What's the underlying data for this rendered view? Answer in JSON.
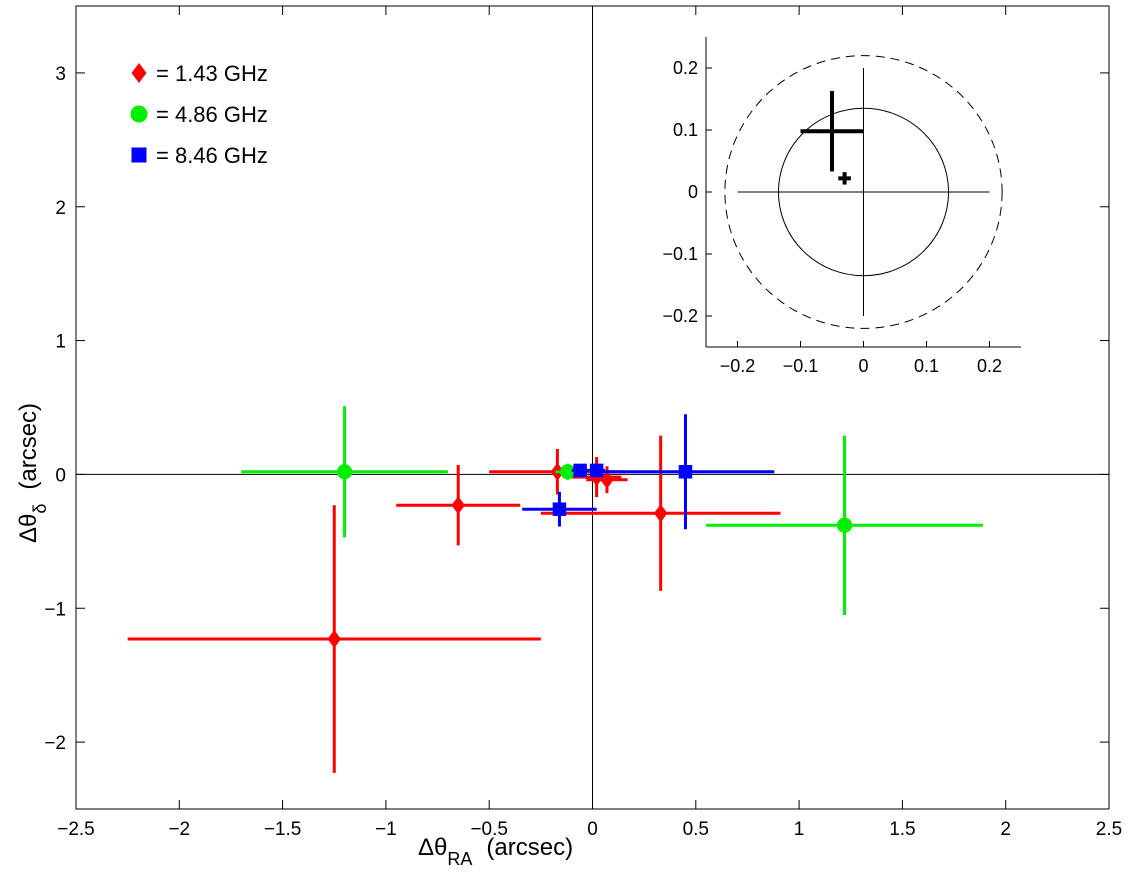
{
  "chart_data": [
    {
      "type": "scatter",
      "title": "",
      "xlabel": "Δθ_RA (arcsec)",
      "xlabel_main": "Δθ",
      "xlabel_sub": "RA",
      "xlabel_unit": "(arcsec)",
      "ylabel": "Δθ_δ (arcsec)",
      "ylabel_main": "Δθ",
      "ylabel_sub": "δ",
      "ylabel_unit": "(arcsec)",
      "xlim": [
        -2.5,
        2.5
      ],
      "ylim": [
        -2.5,
        3.5
      ],
      "xticks": [
        -2.5,
        -2,
        -1.5,
        -1,
        -0.5,
        0,
        0.5,
        1,
        1.5,
        2,
        2.5
      ],
      "yticks": [
        -2,
        -1,
        0,
        1,
        2,
        3
      ],
      "xtick_labels": [
        "−2.5",
        "−2",
        "−1.5",
        "−1",
        "−0.5",
        "0",
        "0.5",
        "1",
        "1.5",
        "2",
        "2.5"
      ],
      "ytick_labels": [
        "−2",
        "−1",
        "0",
        "1",
        "2",
        "3"
      ],
      "reference_lines": {
        "x": 0,
        "y": 0
      },
      "grid": false,
      "legend_position": "top-left",
      "series": [
        {
          "name": "= 1.43 GHz",
          "color": "#ff0000",
          "marker": "diamond",
          "points": [
            {
              "x": -1.25,
              "y": -1.23,
              "xerr": [
                1.0,
                1.0
              ],
              "yerr": [
                1.0,
                1.0
              ]
            },
            {
              "x": -0.65,
              "y": -0.23,
              "xerr": [
                0.3,
                0.3
              ],
              "yerr": [
                0.3,
                0.3
              ]
            },
            {
              "x": -0.17,
              "y": 0.02,
              "xerr": [
                0.33,
                0.33
              ],
              "yerr": [
                0.17,
                0.17
              ]
            },
            {
              "x": 0.02,
              "y": -0.02,
              "xerr": [
                0.12,
                0.12
              ],
              "yerr": [
                0.15,
                0.15
              ]
            },
            {
              "x": 0.07,
              "y": -0.04,
              "xerr": [
                0.1,
                0.1
              ],
              "yerr": [
                0.1,
                0.1
              ]
            },
            {
              "x": 0.33,
              "y": -0.29,
              "xerr": [
                0.58,
                0.58
              ],
              "yerr": [
                0.58,
                0.58
              ]
            }
          ]
        },
        {
          "name": "= 4.86 GHz",
          "color": "#00ee00",
          "marker": "circle",
          "points": [
            {
              "x": -1.2,
              "y": 0.02,
              "xerr": [
                0.5,
                0.5
              ],
              "yerr": [
                0.49,
                0.49
              ]
            },
            {
              "x": -0.12,
              "y": 0.02,
              "xerr": [
                0.06,
                0.06
              ],
              "yerr": [
                0.06,
                0.06
              ]
            },
            {
              "x": 1.22,
              "y": -0.38,
              "xerr": [
                0.67,
                0.67
              ],
              "yerr": [
                0.67,
                0.67
              ]
            }
          ]
        },
        {
          "name": "= 8.46 GHz",
          "color": "#0000ff",
          "marker": "square",
          "points": [
            {
              "x": -0.16,
              "y": -0.26,
              "xerr": [
                0.18,
                0.18
              ],
              "yerr": [
                0.13,
                0.13
              ]
            },
            {
              "x": -0.06,
              "y": 0.03,
              "xerr": [
                0.04,
                0.04
              ],
              "yerr": [
                0.04,
                0.04
              ]
            },
            {
              "x": 0.02,
              "y": 0.03,
              "xerr": [
                0.04,
                0.04
              ],
              "yerr": [
                0.04,
                0.04
              ]
            },
            {
              "x": 0.45,
              "y": 0.02,
              "xerr": [
                0.43,
                0.43
              ],
              "yerr": [
                0.43,
                0.43
              ]
            }
          ]
        }
      ]
    },
    {
      "type": "scatter",
      "title": "",
      "xlim": [
        -0.25,
        0.25
      ],
      "ylim": [
        -0.25,
        0.25
      ],
      "xticks": [
        -0.2,
        -0.1,
        0,
        0.1,
        0.2
      ],
      "yticks": [
        -0.2,
        -0.1,
        0,
        0.1,
        0.2
      ],
      "xtick_labels": [
        "−0.2",
        "−0.1",
        "0",
        "0.1",
        "0.2"
      ],
      "ytick_labels": [
        "−0.2",
        "−0.1",
        "0",
        "0.1",
        "0.2"
      ],
      "reference_lines": {
        "x": 0,
        "y": 0,
        "x_span": [
          -0.2,
          0.2
        ],
        "y_span": [
          -0.2,
          0.2
        ]
      },
      "circles": [
        {
          "center": [
            0,
            0
          ],
          "radius": 0.135,
          "style": "solid"
        },
        {
          "center": [
            0,
            0
          ],
          "radius": 0.22,
          "style": "dashed"
        }
      ],
      "crosses": [
        {
          "x": -0.05,
          "y": 0.098,
          "xerr": [
            0.05,
            0.05
          ],
          "yerr": [
            0.065,
            0.065
          ],
          "weight": "bold"
        },
        {
          "x": -0.03,
          "y": 0.022,
          "xerr": [
            0.01,
            0.01
          ],
          "yerr": [
            0.01,
            0.01
          ],
          "weight": "bold"
        }
      ]
    }
  ]
}
